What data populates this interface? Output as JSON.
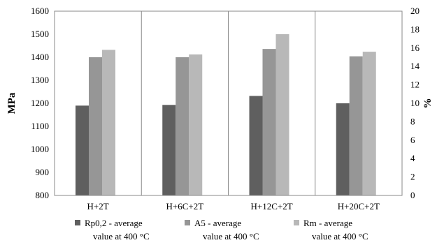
{
  "chart_data": {
    "type": "bar",
    "categories": [
      "H+2T",
      "H+6C+2T",
      "H+12C+2T",
      "H+20C+2T"
    ],
    "series": [
      {
        "name": "Rp0,2 - average value at 400 °C",
        "axis": "left",
        "color": "#5f5f5f",
        "values": [
          1190,
          1193,
          1232,
          1200
        ]
      },
      {
        "name": "A5 - average value at 400 °C",
        "axis": "right",
        "color": "#969696",
        "values": [
          15.0,
          15.0,
          15.9,
          15.1
        ]
      },
      {
        "name": "Rm - average value at 400 °C",
        "axis": "right",
        "color": "#b8b8b8",
        "values": [
          15.8,
          15.3,
          17.5,
          15.6
        ]
      }
    ],
    "legend_lines": [
      [
        "Rp0,2 - average",
        "value at 400 °C"
      ],
      [
        "A5 - average",
        "value at 400 °C"
      ],
      [
        "Rm - average",
        "value at 400 °C"
      ]
    ],
    "ylabel": "MPa",
    "y2label": "%",
    "ylim": [
      800,
      1600
    ],
    "y2lim": [
      0,
      20
    ],
    "yticks": [
      "800",
      "900",
      "1000",
      "1100",
      "1200",
      "1300",
      "1400",
      "1500",
      "1600"
    ],
    "y2ticks": [
      "0",
      "2",
      "4",
      "6",
      "8",
      "10",
      "12",
      "14",
      "16",
      "18",
      "20"
    ],
    "grid": "vertical category separators",
    "legend": "bottom"
  }
}
